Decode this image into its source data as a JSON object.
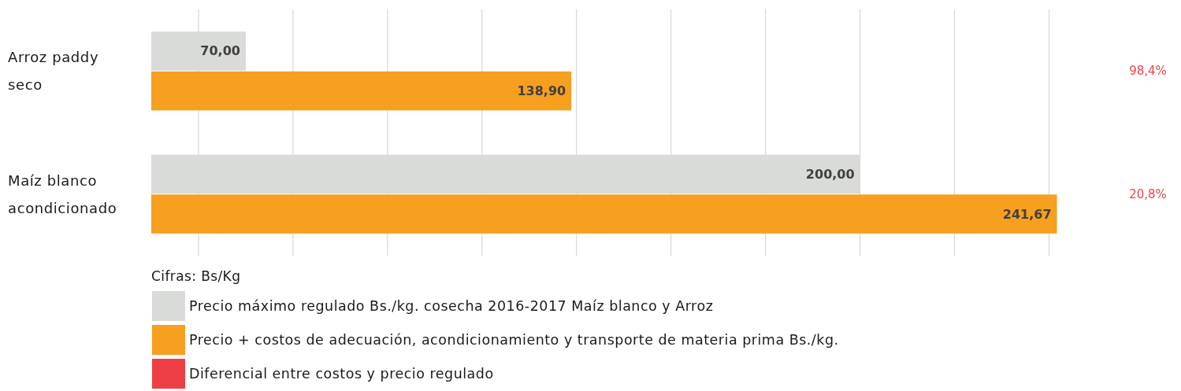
{
  "chart_data": {
    "type": "bar",
    "orientation": "horizontal",
    "categories": [
      "Arroz paddy seco",
      "Maíz blanco acondicionado"
    ],
    "series": [
      {
        "name": "Precio máximo regulado Bs./kg. cosecha 2016-2017 Maíz blanco y Arroz",
        "color": "#d9dbd8",
        "values": [
          70,
          200
        ],
        "value_labels": [
          "70,00",
          "200,00"
        ]
      },
      {
        "name": "Precio + costos de adecuación, acondicionamiento y transporte de materia prima Bs./kg.",
        "color": "#f79f1f",
        "values": [
          138.9,
          241.67
        ],
        "value_labels": [
          "138,90",
          "241,67"
        ]
      },
      {
        "name": "Diferencial entre costos y precio regulado",
        "type": "other",
        "color": "#ee3f47",
        "values": [
          null,
          null
        ],
        "value_labels": [
          "98,4%",
          "20,8%"
        ]
      }
    ],
    "xlim": [
      50,
      242
    ],
    "xticks": [
      {
        "value": 60,
        "label": null
      },
      {
        "value": 80,
        "label": null
      },
      {
        "value": 100,
        "label": null
      },
      {
        "value": 120,
        "label": null
      },
      {
        "value": 140,
        "label": null
      },
      {
        "value": 160,
        "label": null
      },
      {
        "value": 180,
        "label": null
      },
      {
        "value": 200,
        "label": null
      },
      {
        "value": 220,
        "label": null
      },
      {
        "value": 240,
        "label": null
      }
    ],
    "grid": "x",
    "legend": "bottom",
    "tick_labels": "y",
    "annotations": [
      "Cifras: Bs/Kg"
    ]
  }
}
